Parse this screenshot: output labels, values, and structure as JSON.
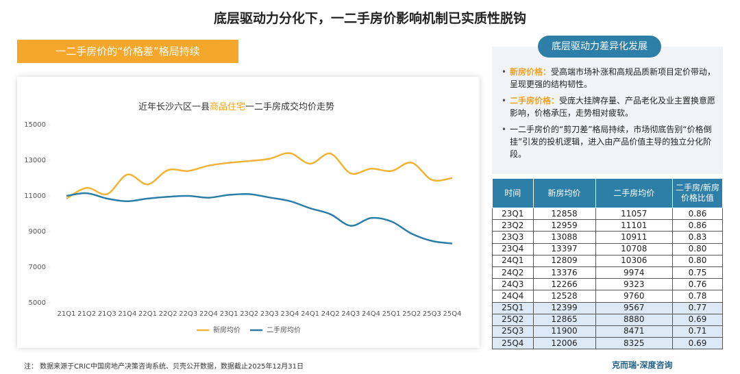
{
  "page_title": "底层驱动力分化下，一二手房价影响机制已实质性脱钩",
  "section_header": "一二手房价的“价格差”格局持续",
  "chart_data": {
    "type": "line",
    "title_parts": [
      "近年长沙六区一县",
      "商品住宅",
      "一二手房成交均价走势"
    ],
    "categories": [
      "21Q1",
      "21Q2",
      "21Q3",
      "21Q4",
      "22Q1",
      "22Q2",
      "22Q3",
      "22Q4",
      "23Q1",
      "23Q2",
      "23Q3",
      "23Q4",
      "24Q1",
      "24Q2",
      "24Q3",
      "24Q4",
      "25Q1",
      "25Q2",
      "25Q3",
      "25Q4"
    ],
    "series": [
      {
        "name": "新房均价",
        "color": "#f2b233",
        "values": [
          10850,
          11450,
          11100,
          12200,
          11650,
          12450,
          12400,
          12700,
          12858,
          12959,
          13088,
          13397,
          12809,
          13376,
          12266,
          12528,
          12399,
          12865,
          11900,
          12006
        ]
      },
      {
        "name": "二手房均价",
        "color": "#2a7da6",
        "values": [
          11000,
          11150,
          10850,
          10700,
          10850,
          10950,
          11000,
          10900,
          11057,
          11101,
          10911,
          10708,
          10306,
          9974,
          9323,
          9760,
          9567,
          8880,
          8471,
          8325
        ]
      }
    ],
    "ylim": [
      5000,
      15000
    ],
    "yticks": [
      5000,
      7000,
      9000,
      11000,
      13000,
      15000
    ],
    "legend": "bottom"
  },
  "panel": {
    "heading": "底层驱动力差异化发展",
    "bullets": [
      {
        "label": "新房价格：",
        "text": "受高端市场补涨和高规品质新项目定价带动，呈现更强的结构韧性。"
      },
      {
        "label": "二手房价格：",
        "text": "受庞大挂牌存量、产品老化及业主置换意愿影响，价格承压，走势相对疲软。"
      },
      {
        "label": "",
        "text": "一二手房价的“剪刀差”格局持续，市场彻底告别“价格倒挂”引发的投机逻辑，进入由产品价值主导的独立分化阶段。"
      }
    ]
  },
  "table": {
    "header": [
      "时间",
      "新房均价",
      "二手房均价",
      "二手房/新房价格比值"
    ],
    "rows": [
      [
        "23Q1",
        "12858",
        "11057",
        "0.86"
      ],
      [
        "23Q2",
        "12959",
        "11101",
        "0.86"
      ],
      [
        "23Q3",
        "13088",
        "10911",
        "0.83"
      ],
      [
        "23Q4",
        "13397",
        "10708",
        "0.80"
      ],
      [
        "24Q1",
        "12809",
        "10306",
        "0.80"
      ],
      [
        "24Q2",
        "13376",
        "9974",
        "0.75"
      ],
      [
        "24Q3",
        "12266",
        "9323",
        "0.76"
      ],
      [
        "24Q4",
        "12528",
        "9760",
        "0.78"
      ],
      [
        "25Q1",
        "12399",
        "9567",
        "0.77"
      ],
      [
        "25Q2",
        "12865",
        "8880",
        "0.69"
      ],
      [
        "25Q3",
        "11900",
        "8471",
        "0.71"
      ],
      [
        "25Q4",
        "12006",
        "8325",
        "0.69"
      ]
    ]
  },
  "footnote": "注： 数据来源于CRIC中国房地产决策咨询系统、贝壳公开数据，数据截止2025年12月31日",
  "brand": "克而瑞·深度咨询"
}
